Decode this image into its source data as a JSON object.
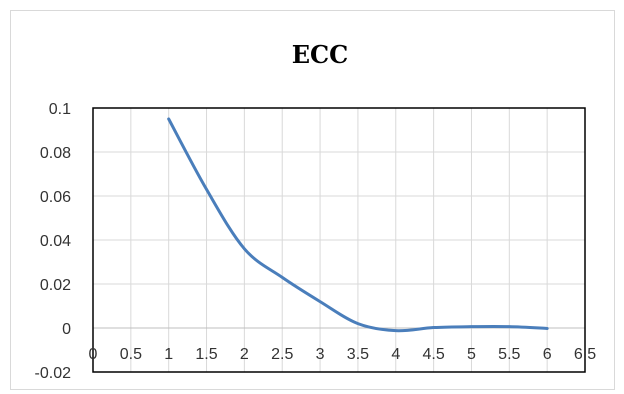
{
  "chart_data": {
    "type": "line",
    "title": "ECC",
    "xlabel": "",
    "ylabel": "",
    "xlim": [
      0,
      6.5
    ],
    "ylim": [
      -0.02,
      0.1
    ],
    "x_ticks": [
      "0",
      "0.5",
      "1",
      "1.5",
      "2",
      "2.5",
      "3",
      "3.5",
      "4",
      "4.5",
      "5",
      "5.5",
      "6",
      "6.5"
    ],
    "y_ticks": [
      "-0.02",
      "0",
      "0.02",
      "0.04",
      "0.06",
      "0.08",
      "0.1"
    ],
    "grid": true,
    "legend": "none",
    "series": [
      {
        "color": "#4a7ebb",
        "x": [
          1,
          1.5,
          2,
          2.5,
          3,
          3.5,
          4,
          4.5,
          5,
          5.5,
          6
        ],
        "y": [
          0.095,
          0.063,
          0.036,
          0.023,
          0.012,
          0.002,
          -0.0012,
          0.0002,
          0.0006,
          0.0006,
          -0.0002
        ]
      }
    ]
  }
}
